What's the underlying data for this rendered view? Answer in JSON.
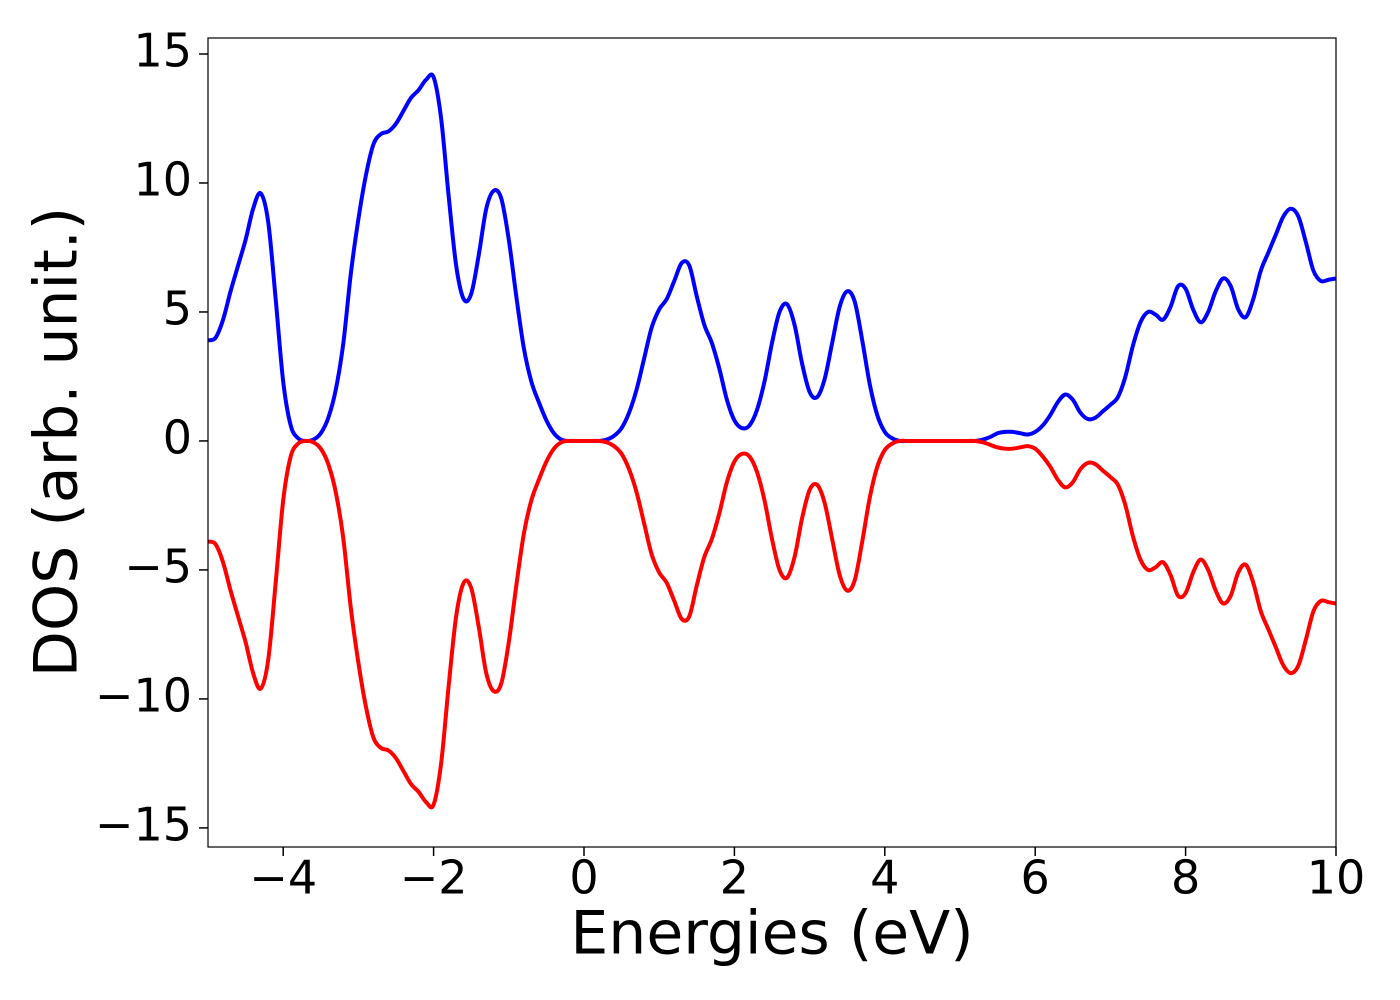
{
  "chart_data": {
    "type": "line",
    "xlabel": "Energies (eV)",
    "ylabel": "DOS (arb. unit.)",
    "xlim": [
      -5,
      10
    ],
    "ylim": [
      -15.74,
      15.62
    ],
    "xticks": [
      {
        "value": -4,
        "label": "−4"
      },
      {
        "value": -2,
        "label": "−2"
      },
      0,
      2,
      4,
      6,
      8,
      10
    ],
    "yticks": [
      {
        "value": -15,
        "label": "−15"
      },
      {
        "value": -10,
        "label": "−10"
      },
      {
        "value": -5,
        "label": "−5"
      },
      0,
      5,
      10,
      15
    ],
    "x": [
      -5,
      -4.9,
      -4.8,
      -4.7,
      -4.6,
      -4.5,
      -4.4,
      -4.3,
      -4.2,
      -4.1,
      -4,
      -3.9,
      -3.8,
      -3.7,
      -3.6,
      -3.5,
      -3.4,
      -3.3,
      -3.2,
      -3.1,
      -3,
      -2.9,
      -2.8,
      -2.7,
      -2.6,
      -2.5,
      -2.4,
      -2.3,
      -2.2,
      -2.1,
      -2,
      -1.9,
      -1.8,
      -1.7,
      -1.6,
      -1.5,
      -1.4,
      -1.3,
      -1.2,
      -1.1,
      -1,
      -0.9,
      -0.8,
      -0.7,
      -0.6,
      -0.5,
      -0.4,
      -0.3,
      -0.2,
      -0.1,
      0,
      0.1,
      0.2,
      0.3,
      0.4,
      0.5,
      0.6,
      0.7,
      0.8,
      0.9,
      1,
      1.1,
      1.2,
      1.3,
      1.4,
      1.5,
      1.6,
      1.7,
      1.8,
      1.9,
      2,
      2.1,
      2.2,
      2.3,
      2.4,
      2.5,
      2.6,
      2.7,
      2.8,
      2.9,
      3,
      3.1,
      3.2,
      3.3,
      3.4,
      3.5,
      3.6,
      3.7,
      3.8,
      3.9,
      4,
      4.1,
      4.2,
      4.3,
      4.4,
      4.5,
      4.6,
      4.7,
      4.8,
      4.9,
      5,
      5.1,
      5.2,
      5.3,
      5.4,
      5.5,
      5.6,
      5.7,
      5.8,
      5.9,
      6,
      6.1,
      6.2,
      6.3,
      6.4,
      6.5,
      6.6,
      6.7,
      6.8,
      6.9,
      7,
      7.1,
      7.2,
      7.3,
      7.4,
      7.5,
      7.6,
      7.7,
      7.8,
      7.9,
      8,
      8.1,
      8.2,
      8.3,
      8.4,
      8.5,
      8.6,
      8.7,
      8.8,
      8.9,
      9,
      9.1,
      9.2,
      9.3,
      9.4,
      9.5,
      9.6,
      9.7,
      9.8,
      9.9,
      10
    ],
    "series": [
      {
        "color": "#0000ff",
        "values": [
          3.9,
          4.0,
          4.7,
          5.8,
          6.8,
          7.8,
          9.0,
          9.6,
          8.5,
          5.5,
          2.3,
          0.6,
          0.1,
          0,
          0.05,
          0.3,
          0.9,
          2.0,
          3.8,
          6.5,
          8.6,
          10.3,
          11.5,
          11.9,
          12.0,
          12.3,
          12.8,
          13.3,
          13.6,
          14.0,
          14.1,
          12.5,
          9.5,
          6.8,
          5.5,
          5.7,
          7.2,
          9.0,
          9.7,
          9.4,
          7.8,
          5.6,
          3.6,
          2.3,
          1.5,
          0.8,
          0.3,
          0.05,
          0,
          0,
          0,
          0,
          0,
          0.05,
          0.2,
          0.5,
          1.1,
          2.0,
          3.2,
          4.4,
          5.1,
          5.5,
          6.2,
          6.9,
          6.8,
          5.6,
          4.5,
          3.8,
          2.8,
          1.6,
          0.8,
          0.5,
          0.6,
          1.2,
          2.3,
          3.8,
          5.0,
          5.3,
          4.5,
          3.0,
          1.9,
          1.7,
          2.4,
          3.8,
          5.2,
          5.8,
          5.4,
          3.9,
          2.2,
          1.0,
          0.35,
          0.1,
          0,
          0,
          0,
          0,
          0,
          0,
          0,
          0,
          0,
          0,
          0,
          0.05,
          0.15,
          0.3,
          0.35,
          0.35,
          0.3,
          0.25,
          0.35,
          0.6,
          1.0,
          1.5,
          1.8,
          1.6,
          1.1,
          0.85,
          0.9,
          1.15,
          1.4,
          1.7,
          2.5,
          3.7,
          4.6,
          5.0,
          4.9,
          4.7,
          5.2,
          6.0,
          5.9,
          5.1,
          4.6,
          5.0,
          5.8,
          6.3,
          6.0,
          5.1,
          4.8,
          5.5,
          6.6,
          7.3,
          8.0,
          8.7,
          9.0,
          8.7,
          7.7,
          6.6,
          6.2,
          6.25,
          6.3
        ]
      },
      {
        "color": "#ff0000",
        "values": [
          -3.9,
          -4.0,
          -4.7,
          -5.8,
          -6.8,
          -7.8,
          -9.0,
          -9.6,
          -8.5,
          -5.5,
          -2.3,
          -0.6,
          -0.1,
          0,
          -0.05,
          -0.3,
          -0.9,
          -2.0,
          -3.8,
          -6.5,
          -8.6,
          -10.3,
          -11.5,
          -11.9,
          -12.0,
          -12.3,
          -12.8,
          -13.3,
          -13.6,
          -14.0,
          -14.1,
          -12.5,
          -9.5,
          -6.8,
          -5.5,
          -5.7,
          -7.2,
          -9.0,
          -9.7,
          -9.4,
          -7.8,
          -5.6,
          -3.6,
          -2.3,
          -1.5,
          -0.8,
          -0.3,
          -0.05,
          0,
          0,
          0,
          0,
          0,
          -0.05,
          -0.2,
          -0.5,
          -1.1,
          -2.0,
          -3.2,
          -4.4,
          -5.1,
          -5.5,
          -6.2,
          -6.9,
          -6.8,
          -5.6,
          -4.5,
          -3.8,
          -2.8,
          -1.6,
          -0.8,
          -0.5,
          -0.6,
          -1.2,
          -2.3,
          -3.8,
          -5.0,
          -5.3,
          -4.5,
          -3.0,
          -1.9,
          -1.7,
          -2.4,
          -3.8,
          -5.2,
          -5.8,
          -5.4,
          -3.9,
          -2.2,
          -1.0,
          -0.35,
          -0.1,
          0,
          0,
          0,
          0,
          0,
          0,
          0,
          0,
          0,
          0,
          0,
          -0.05,
          -0.15,
          -0.25,
          -0.3,
          -0.3,
          -0.25,
          -0.2,
          -0.3,
          -0.6,
          -1.0,
          -1.5,
          -1.8,
          -1.6,
          -1.1,
          -0.85,
          -0.9,
          -1.15,
          -1.4,
          -1.7,
          -2.5,
          -3.7,
          -4.6,
          -5.0,
          -4.9,
          -4.7,
          -5.2,
          -6.0,
          -5.9,
          -5.1,
          -4.6,
          -5.0,
          -5.8,
          -6.3,
          -6.0,
          -5.1,
          -4.8,
          -5.5,
          -6.6,
          -7.3,
          -8.0,
          -8.7,
          -9.0,
          -8.7,
          -7.7,
          -6.6,
          -6.2,
          -6.25,
          -6.3
        ]
      }
    ]
  }
}
